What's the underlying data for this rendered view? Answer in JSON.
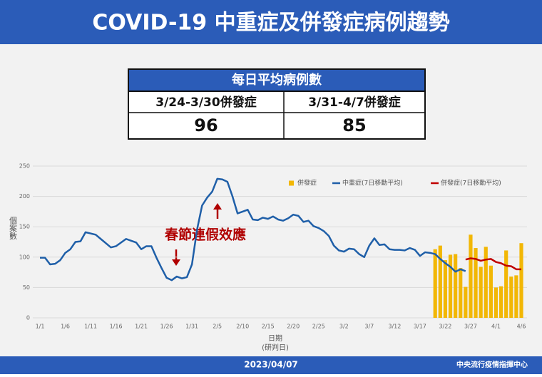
{
  "header": {
    "title": "COVID-19 中重症及併發症病例趨勢"
  },
  "table": {
    "title": "每日平均病例數",
    "columns": [
      "3/24-3/30併發症",
      "3/31-4/7併發症"
    ],
    "values": [
      96,
      85
    ]
  },
  "chart_data": {
    "type": "combo",
    "ylabel": "個案數",
    "xlabel": "日期",
    "xlabel_note": "(研判日)",
    "annotation": "春節連假效應",
    "ylim": [
      0,
      250
    ],
    "yticks": [
      0,
      50,
      100,
      150,
      200,
      250
    ],
    "grid": true,
    "legend": "upper right",
    "categories": [
      "1/1",
      null,
      null,
      null,
      null,
      "1/6",
      null,
      null,
      null,
      null,
      "1/11",
      null,
      null,
      null,
      null,
      "1/16",
      null,
      null,
      null,
      null,
      "1/21",
      null,
      null,
      null,
      null,
      "1/26",
      null,
      null,
      null,
      null,
      "1/31",
      null,
      null,
      null,
      null,
      "2/5",
      null,
      null,
      null,
      null,
      "2/10",
      null,
      null,
      null,
      null,
      "2/15",
      null,
      null,
      null,
      null,
      "2/20",
      null,
      null,
      null,
      null,
      "2/25",
      null,
      null,
      null,
      null,
      "3/2",
      null,
      null,
      null,
      null,
      "3/7",
      null,
      null,
      null,
      null,
      "3/12",
      null,
      null,
      null,
      null,
      "3/17",
      null,
      null,
      null,
      null,
      "3/22",
      null,
      null,
      null,
      null,
      "3/27",
      null,
      null,
      null,
      null,
      "4/1",
      null,
      null,
      null,
      null,
      "4/6"
    ],
    "series": [
      {
        "name": "併發症",
        "type": "bar",
        "color": "#f2b705",
        "values": [
          null,
          null,
          null,
          null,
          null,
          null,
          null,
          null,
          null,
          null,
          null,
          null,
          null,
          null,
          null,
          null,
          null,
          null,
          null,
          null,
          null,
          null,
          null,
          null,
          null,
          null,
          null,
          null,
          null,
          null,
          null,
          null,
          null,
          null,
          null,
          null,
          null,
          null,
          null,
          null,
          null,
          null,
          null,
          null,
          null,
          null,
          null,
          null,
          null,
          null,
          null,
          null,
          null,
          null,
          null,
          null,
          null,
          null,
          null,
          null,
          null,
          null,
          null,
          null,
          null,
          null,
          null,
          null,
          null,
          null,
          null,
          null,
          null,
          null,
          null,
          null,
          null,
          null,
          113,
          119,
          95,
          104,
          105,
          82,
          51,
          137,
          115,
          84,
          117,
          86,
          50,
          52,
          111,
          68,
          70,
          123
        ]
      },
      {
        "name": "中重症(7日移動平均)",
        "type": "line",
        "color": "#1f5fa8",
        "values": [
          99,
          99,
          88,
          89,
          95,
          107,
          113,
          125,
          126,
          141,
          139,
          137,
          130,
          123,
          116,
          118,
          124,
          130,
          127,
          124,
          113,
          118,
          118,
          99,
          82,
          66,
          62,
          68,
          65,
          67,
          88,
          145,
          185,
          198,
          208,
          229,
          228,
          224,
          200,
          172,
          175,
          178,
          162,
          161,
          165,
          163,
          167,
          162,
          160,
          164,
          170,
          168,
          158,
          160,
          151,
          148,
          143,
          135,
          119,
          111,
          109,
          114,
          113,
          105,
          100,
          119,
          131,
          120,
          121,
          113,
          112,
          112,
          111,
          115,
          112,
          102,
          108,
          107,
          105,
          97,
          90,
          84,
          76,
          80,
          77,
          null,
          null,
          null,
          null,
          null,
          null,
          null,
          null,
          null,
          null,
          null
        ]
      },
      {
        "name": "併發症(7日移動平均)",
        "type": "line",
        "color": "#c00000",
        "values": [
          null,
          null,
          null,
          null,
          null,
          null,
          null,
          null,
          null,
          null,
          null,
          null,
          null,
          null,
          null,
          null,
          null,
          null,
          null,
          null,
          null,
          null,
          null,
          null,
          null,
          null,
          null,
          null,
          null,
          null,
          null,
          null,
          null,
          null,
          null,
          null,
          null,
          null,
          null,
          null,
          null,
          null,
          null,
          null,
          null,
          null,
          null,
          null,
          null,
          null,
          null,
          null,
          null,
          null,
          null,
          null,
          null,
          null,
          null,
          null,
          null,
          null,
          null,
          null,
          null,
          null,
          null,
          null,
          null,
          null,
          null,
          null,
          null,
          null,
          null,
          null,
          null,
          null,
          null,
          null,
          null,
          null,
          null,
          null,
          96,
          98,
          97,
          94,
          96,
          97,
          92,
          90,
          86,
          85,
          80,
          80
        ]
      }
    ]
  },
  "footer": {
    "date": "2023/04/07",
    "org": "中央流行疫情指揮中心"
  }
}
